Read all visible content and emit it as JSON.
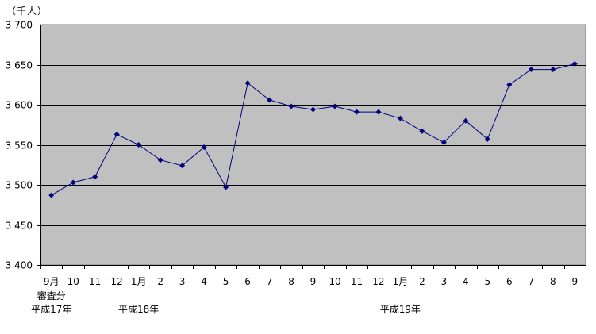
{
  "chart_data": {
    "type": "line",
    "unit_label": "（千人）",
    "title": "",
    "xlabel": "",
    "ylabel": "",
    "ylim": [
      3400,
      3700
    ],
    "y_ticks": [
      3400,
      3450,
      3500,
      3550,
      3600,
      3650,
      3700
    ],
    "y_tick_labels": [
      "3 400",
      "3 450",
      "3 500",
      "3 550",
      "3 600",
      "3 650",
      "3 700"
    ],
    "grid": true,
    "legend": "none",
    "colors": {
      "plot_background": "#c0c0c0",
      "series_line": "#000080",
      "gridline": "#000000"
    },
    "categories": [
      "9月",
      "10",
      "11",
      "12",
      "1月",
      "2",
      "3",
      "4",
      "5",
      "6",
      "7",
      "8",
      "9",
      "10",
      "11",
      "12",
      "1月",
      "2",
      "3",
      "4",
      "5",
      "6",
      "7",
      "8",
      "9"
    ],
    "extra_labels": [
      {
        "index": 0,
        "text": "審査分"
      }
    ],
    "group_labels": [
      {
        "index": 0,
        "text": "平成17年"
      },
      {
        "index": 4,
        "text": "平成18年"
      },
      {
        "index": 16,
        "text": "平成19年"
      }
    ],
    "series": [
      {
        "values": [
          3487,
          3503,
          3510,
          3563,
          3550,
          3531,
          3524,
          3547,
          3497,
          3627,
          3606,
          3598,
          3594,
          3598,
          3591,
          3591,
          3583,
          3567,
          3553,
          3580,
          3557,
          3625,
          3644,
          3644,
          3651
        ]
      }
    ]
  }
}
